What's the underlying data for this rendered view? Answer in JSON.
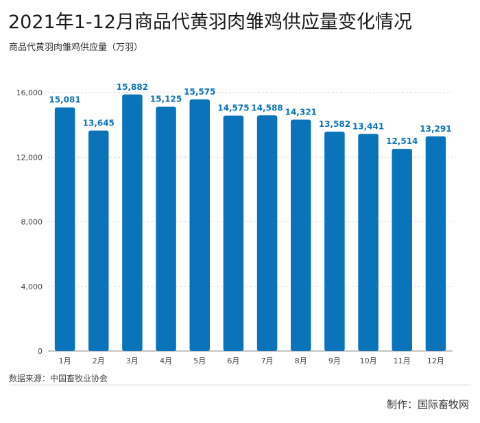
{
  "title": "2021年1-12月商品代黄羽肉雏鸡供应量变化情况",
  "subtitle": "商品代黄羽肉雏鸡供应量（万羽）",
  "source": "数据来源：中国畜牧业协会",
  "maker": "制作：国际畜牧网",
  "colors": {
    "bar": "#0a73ba",
    "label": "#0a73ba",
    "grid": "#d9d9d9",
    "axis": "#444444"
  },
  "chart_data": {
    "type": "bar",
    "categories": [
      "1月",
      "2月",
      "3月",
      "4月",
      "5月",
      "6月",
      "7月",
      "8月",
      "9月",
      "10月",
      "11月",
      "12月"
    ],
    "values": [
      15081,
      13645,
      15882,
      15125,
      15575,
      14575,
      14588,
      14321,
      13582,
      13441,
      12514,
      13291
    ],
    "value_labels": [
      "15,081",
      "13,645",
      "15,882",
      "15,125",
      "15,575",
      "14,575",
      "14,588",
      "14,321",
      "13,582",
      "13,441",
      "12,514",
      "13,291"
    ],
    "yticks": [
      0,
      4000,
      8000,
      12000,
      16000
    ],
    "ytick_labels": [
      "0",
      "4,000",
      "8,000",
      "12,000",
      "16,000"
    ],
    "ylim": [
      0,
      16000
    ],
    "grid": true,
    "legend": "none"
  }
}
